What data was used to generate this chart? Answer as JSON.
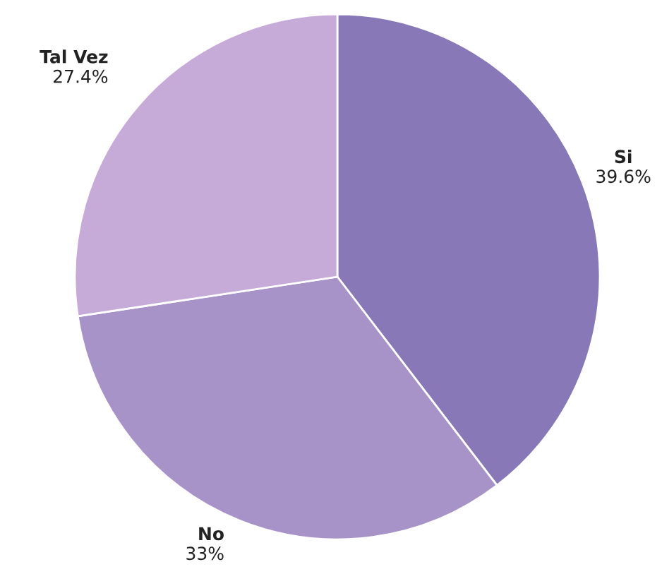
{
  "chart_data": {
    "type": "pie",
    "categories": [
      "Si",
      "No",
      "Tal Vez"
    ],
    "values": [
      39.6,
      33,
      27.4
    ],
    "colors": [
      "#8878b8",
      "#a893c9",
      "#c6abd9"
    ],
    "value_labels": [
      "39.6%",
      "33%",
      "27.4%"
    ],
    "legend": false
  }
}
